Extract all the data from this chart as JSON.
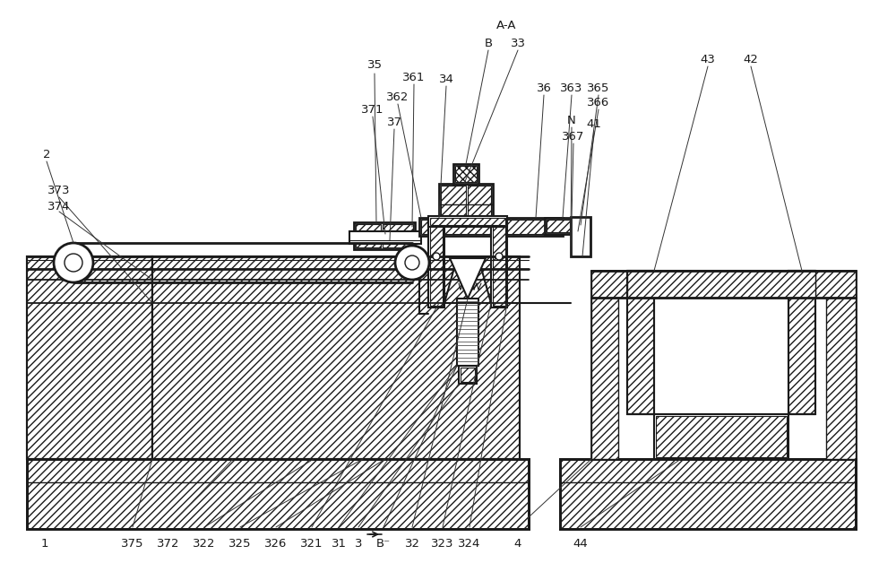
{
  "bg": "#ffffff",
  "lc": "#1a1a1a",
  "figsize": [
    10.0,
    6.28
  ],
  "dpi": 100,
  "bottom_labels": [
    [
      "375",
      148,
      22
    ],
    [
      "372",
      188,
      22
    ],
    [
      "322",
      228,
      22
    ],
    [
      "325",
      268,
      22
    ],
    [
      "326",
      308,
      22
    ],
    [
      "321",
      348,
      22
    ],
    [
      "31",
      378,
      22
    ],
    [
      "3",
      400,
      22
    ],
    [
      "B⁻",
      428,
      22
    ],
    [
      "32",
      460,
      22
    ],
    [
      "323",
      494,
      22
    ],
    [
      "324",
      524,
      22
    ],
    [
      "4",
      578,
      22
    ],
    [
      "44",
      648,
      22
    ],
    [
      "1",
      50,
      22
    ]
  ],
  "top_labels": [
    [
      "A-A",
      565,
      600
    ],
    [
      "B",
      545,
      580
    ],
    [
      "33",
      578,
      580
    ],
    [
      "35",
      418,
      556
    ],
    [
      "361",
      462,
      542
    ],
    [
      "34",
      498,
      540
    ],
    [
      "36",
      607,
      530
    ],
    [
      "363",
      638,
      530
    ],
    [
      "365",
      668,
      530
    ],
    [
      "362",
      444,
      520
    ],
    [
      "366",
      668,
      514
    ],
    [
      "371",
      416,
      506
    ],
    [
      "37",
      440,
      492
    ],
    [
      "N",
      638,
      494
    ],
    [
      "41",
      663,
      490
    ],
    [
      "367",
      640,
      476
    ],
    [
      "2",
      52,
      455
    ],
    [
      "373",
      66,
      415
    ],
    [
      "374",
      66,
      398
    ],
    [
      "43",
      790,
      562
    ],
    [
      "42",
      838,
      562
    ]
  ]
}
